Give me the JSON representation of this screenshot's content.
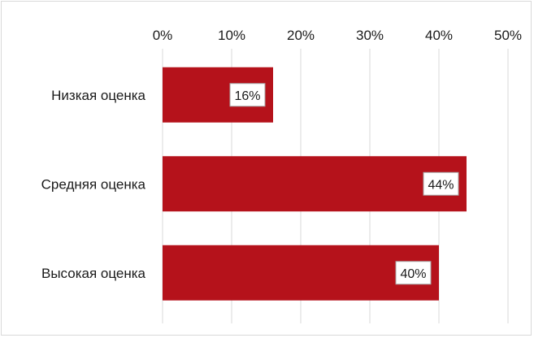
{
  "chart_data": {
    "type": "bar",
    "orientation": "horizontal",
    "categories": [
      "Низкая оценка",
      "Средняя оценка",
      "Высокая оценка"
    ],
    "values": [
      16,
      44,
      40
    ],
    "value_labels": [
      "16%",
      "44%",
      "40%"
    ],
    "xlim": [
      0,
      50
    ],
    "x_ticks": [
      0,
      10,
      20,
      30,
      40,
      50
    ],
    "x_tick_labels": [
      "0%",
      "10%",
      "20%",
      "30%",
      "40%",
      "50%"
    ],
    "x_axis_position": "top",
    "grid": true,
    "legend": "none",
    "title": "",
    "xlabel": "",
    "ylabel": ""
  },
  "colors": {
    "bar": "#b5121b",
    "grid": "#d9d9d9",
    "frame": "#d9d9d9",
    "text": "#1a1a1a",
    "label_box_fill": "#ffffff",
    "label_box_border": "#a6a6a6"
  }
}
